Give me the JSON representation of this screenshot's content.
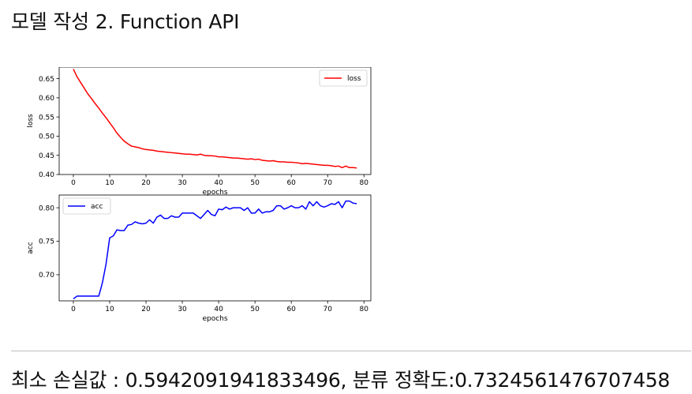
{
  "page": {
    "title": "모델 작성 2. Function API",
    "result_text": "최소 손실값 : 0.5942091941833496, 분류 정확도:0.7324561476707458"
  },
  "chart_data": [
    {
      "type": "line",
      "xlabel": "epochs",
      "ylabel": "loss",
      "xlim": [
        -3.9,
        81.9
      ],
      "ylim": [
        0.4,
        0.68
      ],
      "xticks": [
        0,
        10,
        20,
        30,
        40,
        50,
        60,
        70,
        80
      ],
      "yticks": [
        0.4,
        0.45,
        0.5,
        0.55,
        0.6,
        0.65
      ],
      "ytick_labels": [
        "0.40",
        "0.45",
        "0.50",
        "0.55",
        "0.60",
        "0.65"
      ],
      "legend_position": "upper-right",
      "series": [
        {
          "name": "loss",
          "color": "#ff0000",
          "x": [
            0,
            1,
            2,
            3,
            4,
            5,
            6,
            7,
            8,
            9,
            10,
            11,
            12,
            13,
            14,
            15,
            16,
            17,
            18,
            19,
            20,
            21,
            22,
            23,
            24,
            25,
            26,
            27,
            28,
            29,
            30,
            31,
            32,
            33,
            34,
            35,
            36,
            37,
            38,
            39,
            40,
            41,
            42,
            43,
            44,
            45,
            46,
            47,
            48,
            49,
            50,
            51,
            52,
            53,
            54,
            55,
            56,
            57,
            58,
            59,
            60,
            61,
            62,
            63,
            64,
            65,
            66,
            67,
            68,
            69,
            70,
            71,
            72,
            73,
            74,
            75,
            76,
            77,
            78
          ],
          "values": [
            0.675,
            0.655,
            0.64,
            0.625,
            0.61,
            0.598,
            0.585,
            0.573,
            0.56,
            0.548,
            0.535,
            0.522,
            0.508,
            0.497,
            0.487,
            0.48,
            0.474,
            0.472,
            0.47,
            0.467,
            0.465,
            0.464,
            0.463,
            0.461,
            0.46,
            0.459,
            0.458,
            0.457,
            0.456,
            0.455,
            0.454,
            0.453,
            0.453,
            0.452,
            0.451,
            0.453,
            0.45,
            0.449,
            0.449,
            0.448,
            0.446,
            0.446,
            0.445,
            0.444,
            0.443,
            0.443,
            0.442,
            0.441,
            0.44,
            0.441,
            0.439,
            0.44,
            0.437,
            0.436,
            0.435,
            0.436,
            0.434,
            0.433,
            0.433,
            0.432,
            0.432,
            0.431,
            0.43,
            0.428,
            0.429,
            0.428,
            0.427,
            0.426,
            0.425,
            0.424,
            0.424,
            0.423,
            0.421,
            0.422,
            0.418,
            0.422,
            0.418,
            0.418,
            0.417
          ]
        }
      ]
    },
    {
      "type": "line",
      "xlabel": "epochs",
      "ylabel": "acc",
      "xlim": [
        -3.9,
        81.9
      ],
      "ylim": [
        0.661,
        0.819
      ],
      "xticks": [
        0,
        10,
        20,
        30,
        40,
        50,
        60,
        70,
        80
      ],
      "yticks": [
        0.7,
        0.75,
        0.8
      ],
      "ytick_labels": [
        "0.70",
        "0.75",
        "0.80"
      ],
      "legend_position": "upper-left",
      "series": [
        {
          "name": "acc",
          "color": "#0000ff",
          "x": [
            0,
            1,
            2,
            3,
            4,
            5,
            6,
            7,
            8,
            9,
            10,
            11,
            12,
            13,
            14,
            15,
            16,
            17,
            18,
            19,
            20,
            21,
            22,
            23,
            24,
            25,
            26,
            27,
            28,
            29,
            30,
            31,
            32,
            33,
            34,
            35,
            36,
            37,
            38,
            39,
            40,
            41,
            42,
            43,
            44,
            45,
            46,
            47,
            48,
            49,
            50,
            51,
            52,
            53,
            54,
            55,
            56,
            57,
            58,
            59,
            60,
            61,
            62,
            63,
            64,
            65,
            66,
            67,
            68,
            69,
            70,
            71,
            72,
            73,
            74,
            75,
            76,
            77,
            78
          ],
          "values": [
            0.664,
            0.668,
            0.668,
            0.668,
            0.668,
            0.668,
            0.668,
            0.668,
            0.688,
            0.716,
            0.755,
            0.758,
            0.767,
            0.766,
            0.766,
            0.774,
            0.775,
            0.779,
            0.777,
            0.776,
            0.777,
            0.782,
            0.777,
            0.786,
            0.789,
            0.784,
            0.784,
            0.788,
            0.786,
            0.786,
            0.792,
            0.792,
            0.792,
            0.792,
            0.788,
            0.784,
            0.79,
            0.796,
            0.79,
            0.788,
            0.798,
            0.797,
            0.801,
            0.798,
            0.8,
            0.8,
            0.8,
            0.796,
            0.8,
            0.792,
            0.792,
            0.798,
            0.792,
            0.794,
            0.794,
            0.796,
            0.803,
            0.803,
            0.798,
            0.8,
            0.803,
            0.8,
            0.8,
            0.803,
            0.798,
            0.809,
            0.803,
            0.809,
            0.803,
            0.801,
            0.803,
            0.806,
            0.805,
            0.809,
            0.8,
            0.81,
            0.81,
            0.807,
            0.806
          ]
        }
      ]
    }
  ]
}
